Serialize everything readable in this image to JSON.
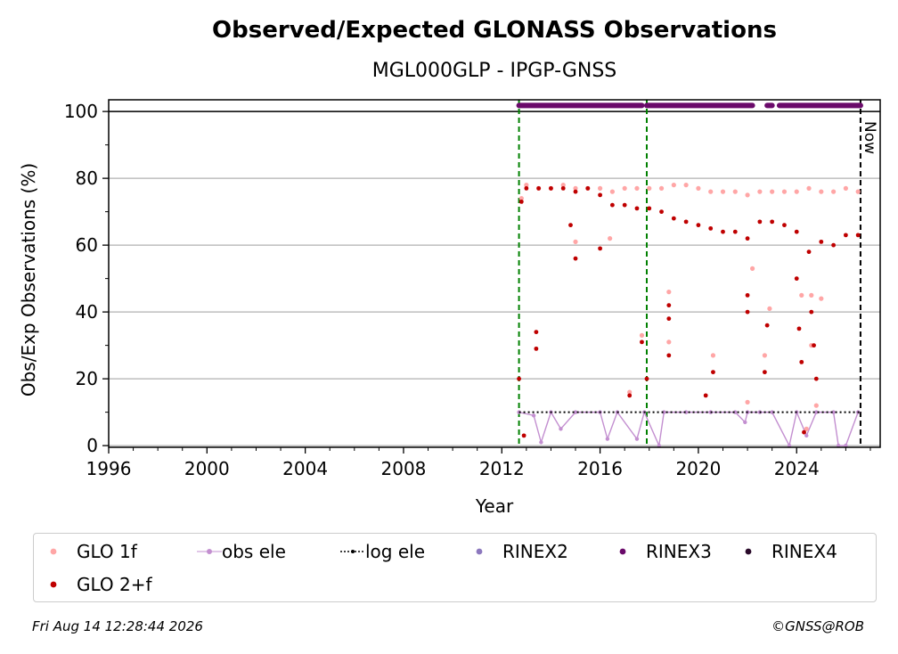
{
  "colors": {
    "glo_1f": "#ffa6a6",
    "glo_2f": "#bf0000",
    "obs_ele": "#c38fd0",
    "log_ele": "#000000",
    "rinex2": "#8c78be",
    "rinex3": "#6a0a6a",
    "rinex4": "#2a0a2a",
    "event_line": "#008000",
    "now_line": "#000000",
    "grid": "#b0b0b0"
  },
  "chart_data": {
    "type": "scatter",
    "title": "Observed/Expected GLONASS Observations",
    "subtitle": "MGL000GLP - IPGP-GNSS",
    "xlabel": "Year",
    "ylabel": "Obs/Exp Observations (%)",
    "xlim": [
      1996,
      2027.4
    ],
    "ylim": [
      -0.5,
      103.5
    ],
    "xticks": [
      1996,
      2000,
      2004,
      2008,
      2012,
      2016,
      2020,
      2024
    ],
    "yticks": [
      0,
      20,
      40,
      60,
      80,
      100
    ],
    "grid": "horizontal",
    "reference_line_y": 100,
    "event_lines_x": [
      2012.7,
      2017.9
    ],
    "now_x": 2026.6,
    "now_label": "Now",
    "series": [
      {
        "name": "GLO 1f",
        "marker": "dot",
        "points": [
          [
            2012.8,
            74
          ],
          [
            2013.0,
            78
          ],
          [
            2013.5,
            77
          ],
          [
            2014.0,
            77
          ],
          [
            2014.5,
            78
          ],
          [
            2015.0,
            77
          ],
          [
            2015.5,
            77
          ],
          [
            2016.0,
            77
          ],
          [
            2016.5,
            76
          ],
          [
            2017.0,
            77
          ],
          [
            2017.5,
            77
          ],
          [
            2018.0,
            77
          ],
          [
            2018.5,
            77
          ],
          [
            2019.0,
            78
          ],
          [
            2019.5,
            78
          ],
          [
            2020.0,
            77
          ],
          [
            2020.5,
            76
          ],
          [
            2021.0,
            76
          ],
          [
            2021.5,
            76
          ],
          [
            2022.0,
            75
          ],
          [
            2022.5,
            76
          ],
          [
            2023.0,
            76
          ],
          [
            2023.5,
            76
          ],
          [
            2024.0,
            76
          ],
          [
            2024.5,
            77
          ],
          [
            2025.0,
            76
          ],
          [
            2025.5,
            76
          ],
          [
            2026.0,
            77
          ],
          [
            2026.5,
            76
          ],
          [
            2017.2,
            16
          ],
          [
            2017.7,
            33
          ],
          [
            2018.8,
            46
          ],
          [
            2018.8,
            31
          ],
          [
            2020.6,
            27
          ],
          [
            2022.0,
            13
          ],
          [
            2022.2,
            53
          ],
          [
            2022.9,
            41
          ],
          [
            2022.7,
            27
          ],
          [
            2024.2,
            45
          ],
          [
            2024.6,
            45
          ],
          [
            2024.6,
            30
          ],
          [
            2024.4,
            5
          ],
          [
            2024.8,
            12
          ],
          [
            2025.0,
            44
          ],
          [
            2015.0,
            61
          ],
          [
            2016.4,
            62
          ]
        ]
      },
      {
        "name": "GLO 2+f",
        "marker": "dot",
        "points": [
          [
            2012.7,
            20
          ],
          [
            2012.8,
            73
          ],
          [
            2012.9,
            3
          ],
          [
            2013.0,
            77
          ],
          [
            2013.4,
            34
          ],
          [
            2013.4,
            29
          ],
          [
            2013.5,
            77
          ],
          [
            2014.0,
            77
          ],
          [
            2014.5,
            77
          ],
          [
            2015.0,
            56
          ],
          [
            2015.0,
            76
          ],
          [
            2015.5,
            77
          ],
          [
            2016.0,
            75
          ],
          [
            2016.5,
            72
          ],
          [
            2017.0,
            72
          ],
          [
            2017.2,
            15
          ],
          [
            2017.5,
            71
          ],
          [
            2017.7,
            31
          ],
          [
            2017.9,
            20
          ],
          [
            2018.0,
            71
          ],
          [
            2018.5,
            70
          ],
          [
            2018.8,
            42
          ],
          [
            2018.8,
            38
          ],
          [
            2018.8,
            27
          ],
          [
            2019.0,
            68
          ],
          [
            2019.5,
            67
          ],
          [
            2020.0,
            66
          ],
          [
            2020.3,
            15
          ],
          [
            2020.5,
            65
          ],
          [
            2020.6,
            22
          ],
          [
            2021.0,
            64
          ],
          [
            2021.5,
            64
          ],
          [
            2022.0,
            62
          ],
          [
            2022.0,
            45
          ],
          [
            2022.0,
            40
          ],
          [
            2022.5,
            67
          ],
          [
            2022.7,
            22
          ],
          [
            2022.8,
            36
          ],
          [
            2023.0,
            67
          ],
          [
            2023.5,
            66
          ],
          [
            2024.0,
            64
          ],
          [
            2024.0,
            50
          ],
          [
            2024.1,
            35
          ],
          [
            2024.2,
            25
          ],
          [
            2024.3,
            4
          ],
          [
            2024.5,
            58
          ],
          [
            2024.6,
            40
          ],
          [
            2024.7,
            30
          ],
          [
            2024.8,
            20
          ],
          [
            2025.0,
            61
          ],
          [
            2025.5,
            60
          ],
          [
            2026.0,
            63
          ],
          [
            2026.5,
            63
          ],
          [
            2016.0,
            59
          ],
          [
            2014.8,
            66
          ]
        ]
      },
      {
        "name": "obs ele",
        "marker": "line",
        "points": [
          [
            2012.7,
            10
          ],
          [
            2013.3,
            9
          ],
          [
            2013.6,
            1
          ],
          [
            2014.0,
            10
          ],
          [
            2014.4,
            5
          ],
          [
            2015.0,
            10
          ],
          [
            2016.0,
            10
          ],
          [
            2016.3,
            2
          ],
          [
            2016.7,
            10
          ],
          [
            2017.5,
            2
          ],
          [
            2017.8,
            10
          ],
          [
            2018.4,
            0
          ],
          [
            2018.6,
            10
          ],
          [
            2019.5,
            10
          ],
          [
            2020.5,
            10
          ],
          [
            2021.5,
            10
          ],
          [
            2021.9,
            7
          ],
          [
            2022.0,
            10
          ],
          [
            2022.5,
            10
          ],
          [
            2023.0,
            10
          ],
          [
            2023.7,
            0
          ],
          [
            2024.0,
            10
          ],
          [
            2024.4,
            3
          ],
          [
            2024.8,
            10
          ],
          [
            2025.5,
            10
          ],
          [
            2025.7,
            0
          ],
          [
            2026.0,
            0
          ],
          [
            2026.5,
            10
          ]
        ]
      },
      {
        "name": "log ele",
        "marker": "dotted-line",
        "points": [
          [
            2012.7,
            10
          ],
          [
            2026.6,
            10
          ]
        ]
      },
      {
        "name": "RINEX2",
        "marker": "dot",
        "points": []
      },
      {
        "name": "RINEX3",
        "marker": "dot",
        "segments": [
          [
            2012.7,
            2017.7
          ],
          [
            2017.9,
            2022.2
          ],
          [
            2022.8,
            2023.0
          ],
          [
            2023.3,
            2026.6
          ]
        ],
        "y": 101.8
      },
      {
        "name": "RINEX4",
        "marker": "dot",
        "points": []
      }
    ]
  },
  "legend": {
    "glo_1f": "GLO 1f",
    "glo_2f": "GLO 2+f",
    "obs_ele": "obs ele",
    "log_ele": "log ele",
    "rinex2": "RINEX2",
    "rinex3": "RINEX3",
    "rinex4": "RINEX4"
  },
  "footer": {
    "timestamp": "Fri Aug 14 12:28:44 2026",
    "copyright": "©GNSS@ROB"
  }
}
